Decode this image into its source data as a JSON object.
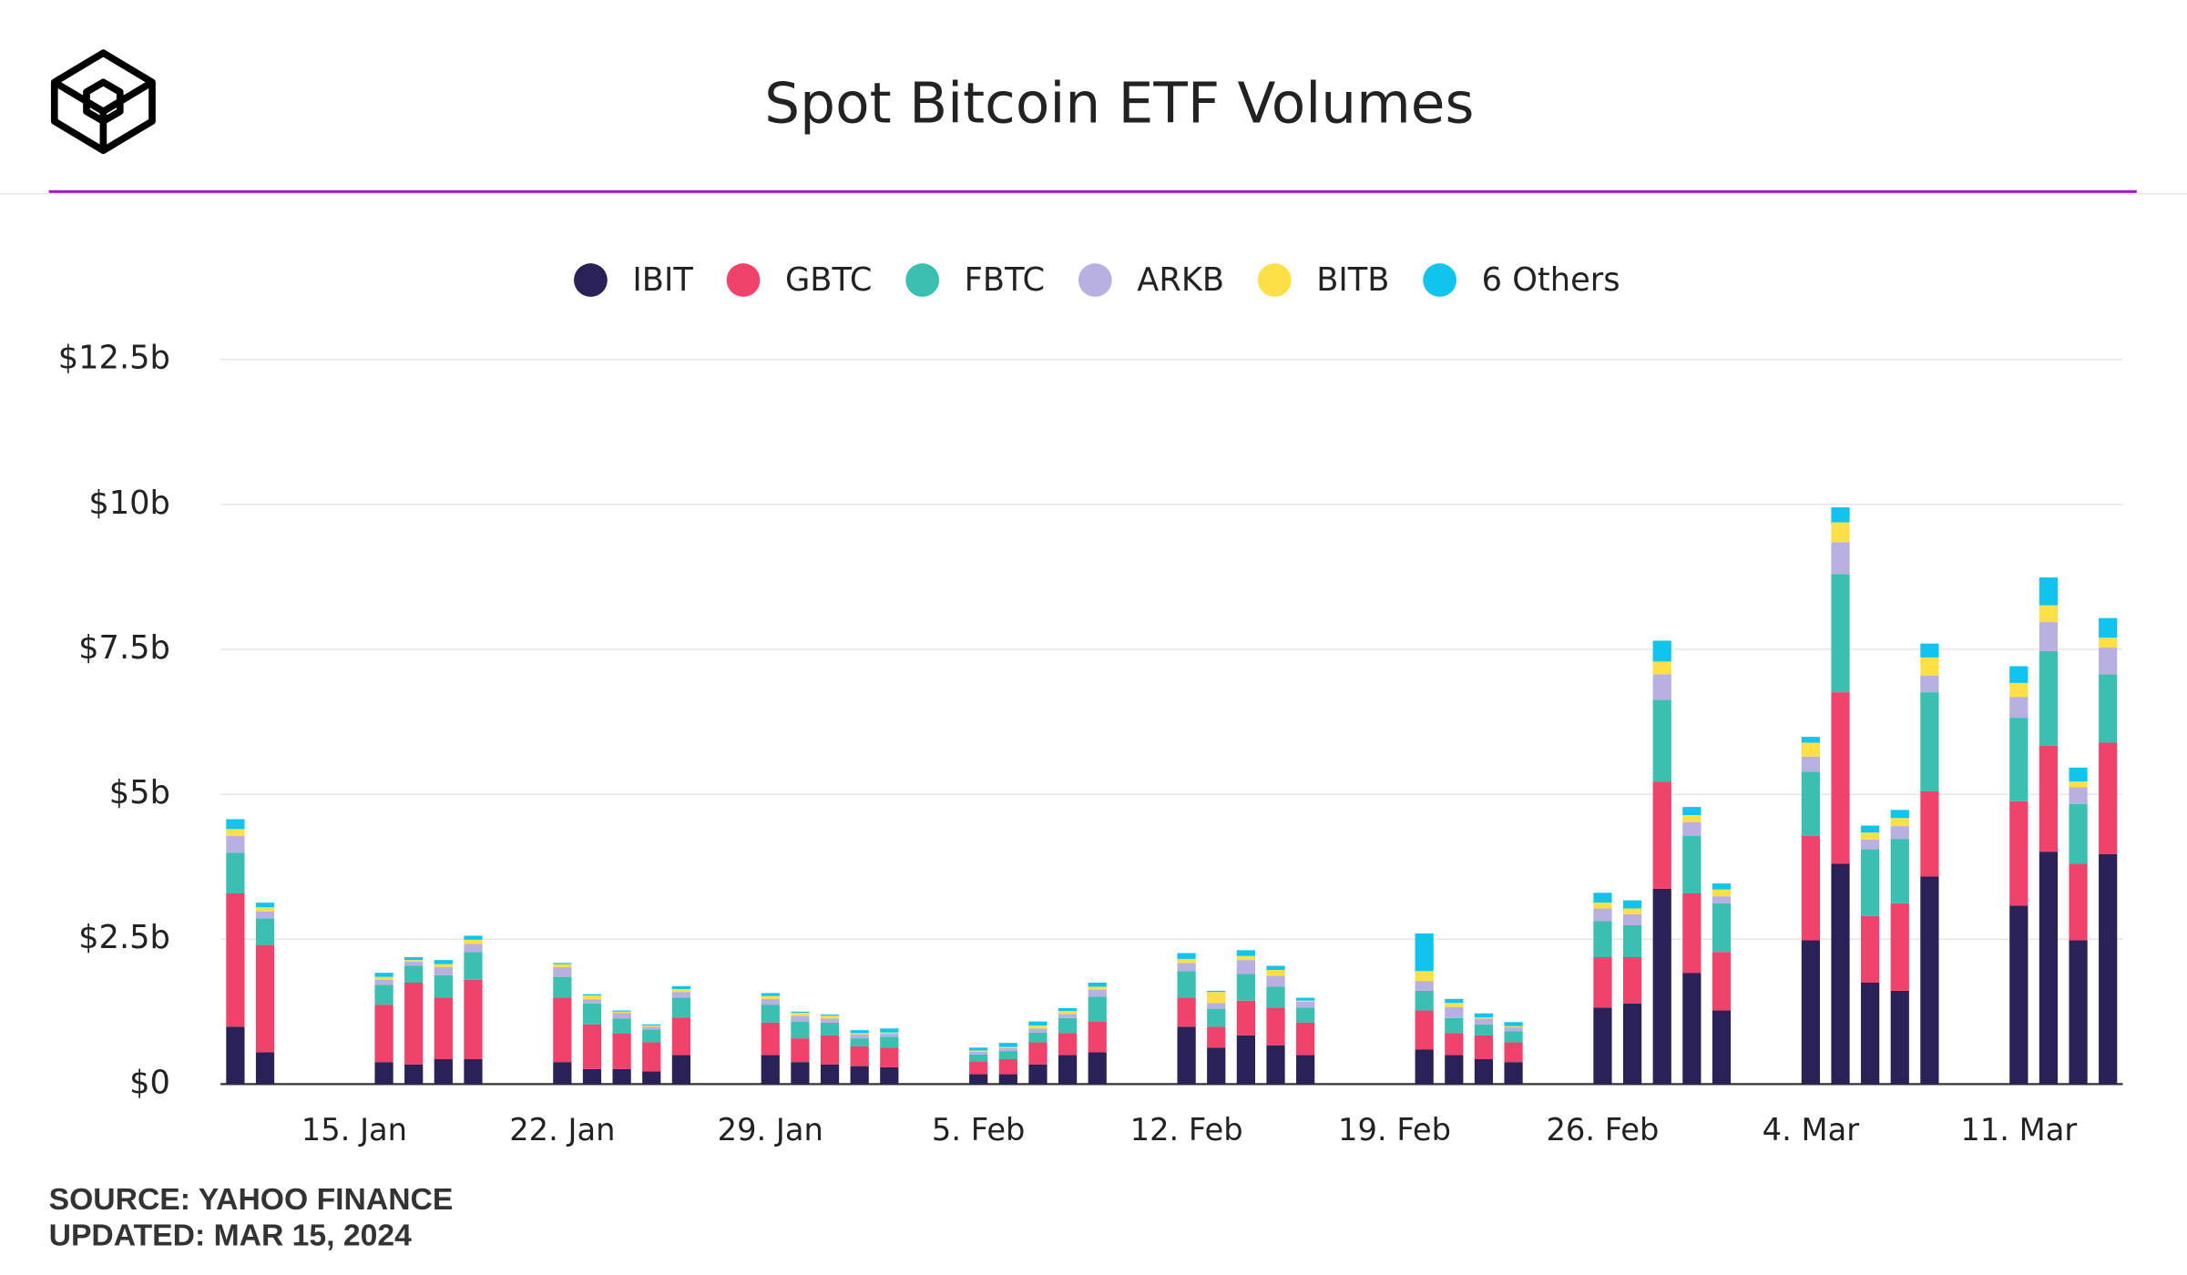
{
  "chart_data": {
    "type": "stacked_bar",
    "title": "Spot Bitcoin ETF Volumes",
    "source": "SOURCE: YAHOO FINANCE",
    "updated": "UPDATED: MAR 15, 2024",
    "x": [
      "11. Jan",
      "12. Jan",
      "16. Jan",
      "17. Jan",
      "18. Jan",
      "19. Jan",
      "22. Jan",
      "23. Jan",
      "24. Jan",
      "25. Jan",
      "26. Jan",
      "29. Jan",
      "30. Jan",
      "31. Jan",
      "1. Feb",
      "2. Feb",
      "5. Feb",
      "6. Feb",
      "7. Feb",
      "8. Feb",
      "9. Feb",
      "12. Feb",
      "13. Feb",
      "14. Feb",
      "15. Feb",
      "16. Feb",
      "20. Feb",
      "21. Feb",
      "22. Feb",
      "23. Feb",
      "26. Feb",
      "27. Feb",
      "28. Feb",
      "29. Feb",
      "1. Mar",
      "4. Mar",
      "5. Mar",
      "6. Mar",
      "7. Mar",
      "8. Mar",
      "11. Mar",
      "12. Mar",
      "13. Mar",
      "14. Mar"
    ],
    "xticks": [
      "15. Jan",
      "22. Jan",
      "29. Jan",
      "5. Feb",
      "12. Feb",
      "19. Feb",
      "26. Feb",
      "4. Mar",
      "11. Mar"
    ],
    "series": [
      {
        "name": "IBIT",
        "color": "#2a2157",
        "values": [
          0.99,
          0.55,
          0.38,
          0.34,
          0.43,
          0.43,
          0.38,
          0.26,
          0.26,
          0.22,
          0.5,
          0.5,
          0.38,
          0.34,
          0.31,
          0.29,
          0.17,
          0.17,
          0.34,
          0.5,
          0.55,
          0.99,
          0.63,
          0.84,
          0.67,
          0.5,
          0.6,
          0.5,
          0.43,
          0.38,
          1.32,
          1.39,
          3.37,
          1.92,
          1.27,
          2.48,
          3.8,
          1.75,
          1.61,
          3.58,
          3.08,
          4.01,
          2.48,
          3.97
        ]
      },
      {
        "name": "GBTC",
        "color": "#f0436b",
        "values": [
          2.3,
          1.85,
          0.99,
          1.41,
          1.06,
          1.37,
          1.11,
          0.77,
          0.61,
          0.5,
          0.65,
          0.56,
          0.41,
          0.5,
          0.34,
          0.34,
          0.22,
          0.26,
          0.38,
          0.38,
          0.53,
          0.5,
          0.36,
          0.6,
          0.65,
          0.56,
          0.67,
          0.38,
          0.41,
          0.34,
          0.87,
          0.8,
          1.85,
          1.37,
          1.01,
          1.8,
          2.96,
          1.15,
          1.51,
          1.47,
          1.8,
          1.83,
          1.32,
          1.92
        ]
      },
      {
        "name": "FBTC",
        "color": "#3bbfb0",
        "values": [
          0.7,
          0.46,
          0.34,
          0.29,
          0.39,
          0.48,
          0.36,
          0.36,
          0.26,
          0.22,
          0.34,
          0.31,
          0.29,
          0.22,
          0.14,
          0.19,
          0.12,
          0.14,
          0.17,
          0.26,
          0.43,
          0.46,
          0.31,
          0.46,
          0.36,
          0.26,
          0.34,
          0.26,
          0.19,
          0.19,
          0.62,
          0.55,
          1.41,
          0.99,
          0.84,
          1.11,
          2.04,
          1.15,
          1.11,
          1.71,
          1.44,
          1.63,
          1.03,
          1.18
        ]
      },
      {
        "name": "ARKB",
        "color": "#b8b0e0",
        "values": [
          0.29,
          0.12,
          0.09,
          0.07,
          0.14,
          0.14,
          0.17,
          0.07,
          0.1,
          0.05,
          0.1,
          0.1,
          0.1,
          0.07,
          0.07,
          0.05,
          0.05,
          0.05,
          0.07,
          0.07,
          0.12,
          0.14,
          0.1,
          0.24,
          0.19,
          0.1,
          0.17,
          0.19,
          0.1,
          0.07,
          0.22,
          0.19,
          0.44,
          0.24,
          0.12,
          0.26,
          0.55,
          0.17,
          0.22,
          0.29,
          0.36,
          0.5,
          0.29,
          0.46
        ]
      },
      {
        "name": "BITB",
        "color": "#fde047",
        "values": [
          0.12,
          0.07,
          0.05,
          0.03,
          0.05,
          0.07,
          0.05,
          0.07,
          0.02,
          0.02,
          0.05,
          0.05,
          0.05,
          0.05,
          0.02,
          0.02,
          0.02,
          0.02,
          0.05,
          0.05,
          0.05,
          0.07,
          0.19,
          0.07,
          0.1,
          0.02,
          0.17,
          0.07,
          0.02,
          0.02,
          0.1,
          0.1,
          0.22,
          0.12,
          0.12,
          0.24,
          0.34,
          0.12,
          0.14,
          0.31,
          0.24,
          0.29,
          0.1,
          0.17
        ]
      },
      {
        "name": "6 Others",
        "color": "#10c4ee",
        "values": [
          0.17,
          0.08,
          0.07,
          0.05,
          0.07,
          0.07,
          0.02,
          0.02,
          0.02,
          0.02,
          0.05,
          0.05,
          0.02,
          0.02,
          0.05,
          0.07,
          0.05,
          0.07,
          0.07,
          0.05,
          0.07,
          0.1,
          0.02,
          0.1,
          0.07,
          0.05,
          0.65,
          0.07,
          0.07,
          0.07,
          0.17,
          0.14,
          0.36,
          0.14,
          0.1,
          0.1,
          0.26,
          0.12,
          0.14,
          0.24,
          0.29,
          0.48,
          0.24,
          0.34
        ]
      }
    ],
    "ylim": [
      0,
      12.5
    ],
    "yticks": [
      {
        "value": 0,
        "label": "$0"
      },
      {
        "value": 2.5,
        "label": "$2.5b"
      },
      {
        "value": 5,
        "label": "$5b"
      },
      {
        "value": 7.5,
        "label": "$7.5b"
      },
      {
        "value": 10,
        "label": "$10b"
      },
      {
        "value": 12.5,
        "label": "$12.5b"
      }
    ],
    "grid": true
  }
}
